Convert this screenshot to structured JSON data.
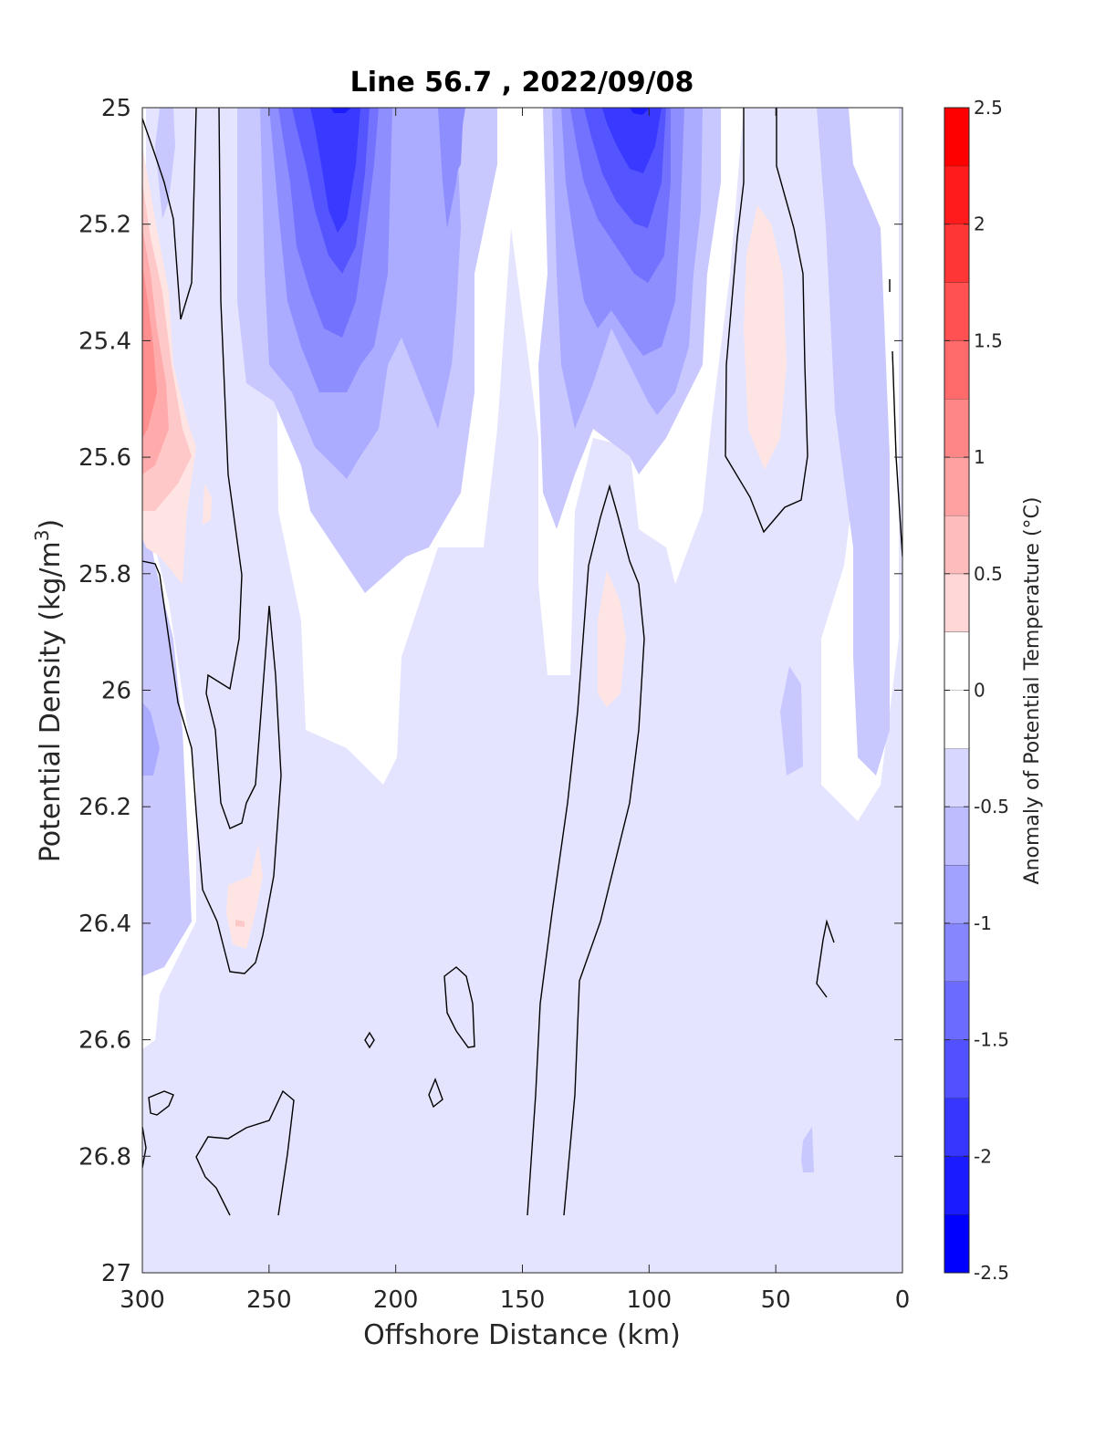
{
  "chart_data": {
    "type": "heatmap",
    "subtype": "filled contour section",
    "title": "Line 56.7 , 2022/09/08",
    "xlabel": "Offshore Distance (km)",
    "ylabel_main": "Potential Density (kg/m",
    "ylabel_sup": "3",
    "ylabel_close": ")",
    "colorbar_label": "Anomaly of Potential Temperature (°C)",
    "xlim": [
      300,
      0
    ],
    "ylim": [
      25,
      27
    ],
    "x_reversed": true,
    "y_reversed": true,
    "xticks": [
      "300",
      "250",
      "200",
      "150",
      "100",
      "50",
      "0"
    ],
    "xtick_values": [
      300,
      250,
      200,
      150,
      100,
      50,
      0
    ],
    "yticks": [
      "25",
      "25.2",
      "25.4",
      "25.6",
      "25.8",
      "26",
      "26.2",
      "26.4",
      "26.6",
      "26.8",
      "27"
    ],
    "ytick_values": [
      25,
      25.2,
      25.4,
      25.6,
      25.8,
      26,
      26.2,
      26.4,
      26.6,
      26.8,
      27
    ],
    "colorbar_ticks": [
      "2.5",
      "2",
      "1.5",
      "1",
      "0.5",
      "0",
      "-0.5",
      "-1",
      "-1.5",
      "-2",
      "-2.5"
    ],
    "colorbar_tick_values": [
      2.5,
      2,
      1.5,
      1,
      0.5,
      0,
      -0.5,
      -1,
      -1.5,
      -2,
      -2.5
    ],
    "colorbar_range": [
      -2.5,
      2.5
    ],
    "contour_level_step": 0.25,
    "zero_contour": "black line",
    "grid": false,
    "colormap": {
      "negative": "#0000ff",
      "zero": "#ffffff",
      "positive": "#ff0000",
      "levels": 20
    },
    "features": [
      {
        "x_range": [
          240,
          200
        ],
        "y_range": [
          25,
          25.85
        ],
        "min_anomaly": -2.0
      },
      {
        "x_range": [
          130,
          80
        ],
        "y_range": [
          25,
          25.65
        ],
        "min_anomaly": -2.0
      },
      {
        "x_range": [
          185,
          175
        ],
        "y_range": [
          25,
          25.55
        ],
        "min_anomaly": -1.0
      },
      {
        "x_range": [
          300,
          285
        ],
        "y_range": [
          25.2,
          25.8
        ],
        "max_anomaly": 1.25
      },
      {
        "x_range": [
          62,
          45
        ],
        "y_range": [
          25.2,
          25.6
        ],
        "max_anomaly": 0.5
      },
      {
        "x_range": [
          120,
          110
        ],
        "y_range": [
          25.8,
          26.0
        ],
        "max_anomaly": 0.5
      },
      {
        "x_range": [
          270,
          255
        ],
        "y_range": [
          26.27,
          26.45
        ],
        "max_anomaly": 0.5
      },
      {
        "x_range": [
          300,
          295
        ],
        "y_range": [
          25.95,
          26.15
        ],
        "min_anomaly": -0.75
      },
      {
        "x_range": [
          25,
          5
        ],
        "y_range": [
          25,
          26.1
        ],
        "min_anomaly": -0.75
      },
      {
        "x_range": [
          100,
          50
        ],
        "y_range": [
          26.2,
          26.9
        ],
        "min_anomaly": -0.5
      }
    ]
  }
}
